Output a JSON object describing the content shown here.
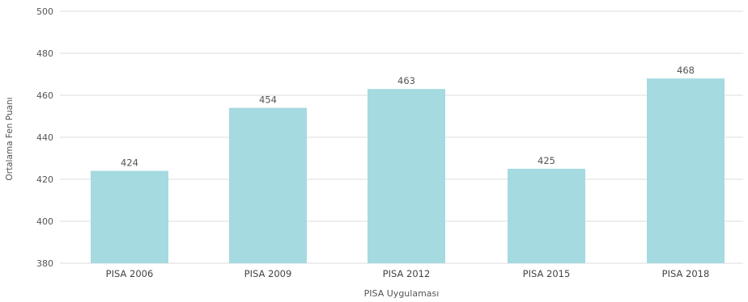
{
  "chart_data": {
    "type": "bar",
    "categories": [
      "PISA 2006",
      "PISA 2009",
      "PISA 2012",
      "PISA 2015",
      "PISA 2018"
    ],
    "values": [
      424,
      454,
      463,
      425,
      468
    ],
    "data_labels": [
      "424",
      "454",
      "463",
      "425",
      "468"
    ],
    "xlabel": "PISA Uygulaması",
    "ylabel": "Ortalama Fen Puanı",
    "ylim": [
      380,
      500
    ],
    "yticks": [
      "380",
      "400",
      "420",
      "440",
      "460",
      "480",
      "500"
    ],
    "grid": true,
    "colors": {
      "bar": "#a5dae0",
      "grid": "#dddddd",
      "text": "#555555"
    }
  }
}
